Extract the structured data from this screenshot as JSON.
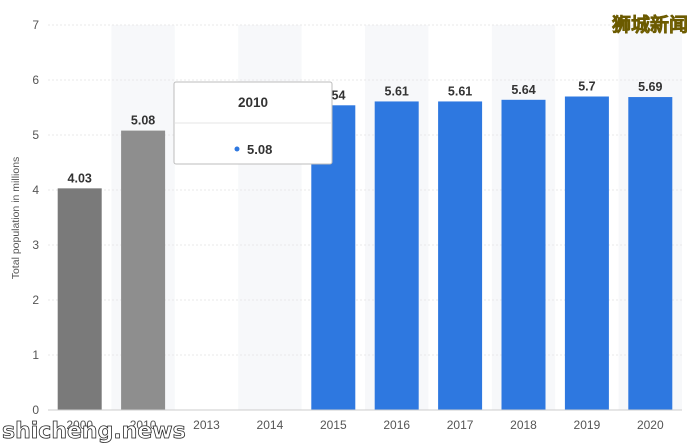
{
  "chart_data": {
    "type": "bar",
    "categories": [
      "2000",
      "2010",
      "2013",
      "2014",
      "2015",
      "2016",
      "2017",
      "2018",
      "2019",
      "2020"
    ],
    "values": [
      4.03,
      5.08,
      null,
      null,
      5.54,
      5.61,
      5.61,
      5.64,
      5.7,
      5.69
    ],
    "data_labels": [
      "4.03",
      "5.08",
      "",
      "",
      "5.54",
      "5.61",
      "5.61",
      "5.64",
      "5.7",
      "5.69"
    ],
    "bar_colors": [
      "#7a7a7a",
      "#8e8e8e",
      "#2e78e0",
      "#2e78e0",
      "#2e78e0",
      "#2e78e0",
      "#2e78e0",
      "#2e78e0",
      "#2e78e0",
      "#2e78e0"
    ],
    "title": "",
    "xlabel": "",
    "ylabel": "Total population in millions",
    "ylim": [
      0,
      7
    ],
    "yticks": [
      0,
      1,
      2,
      3,
      4,
      5,
      6,
      7
    ],
    "grid": true,
    "tooltip": {
      "title": "2010",
      "value": "5.08",
      "marker_color": "#2e78e0"
    }
  },
  "watermarks": {
    "top_right": "狮城新闻",
    "bottom_left": "shicheng.news"
  }
}
